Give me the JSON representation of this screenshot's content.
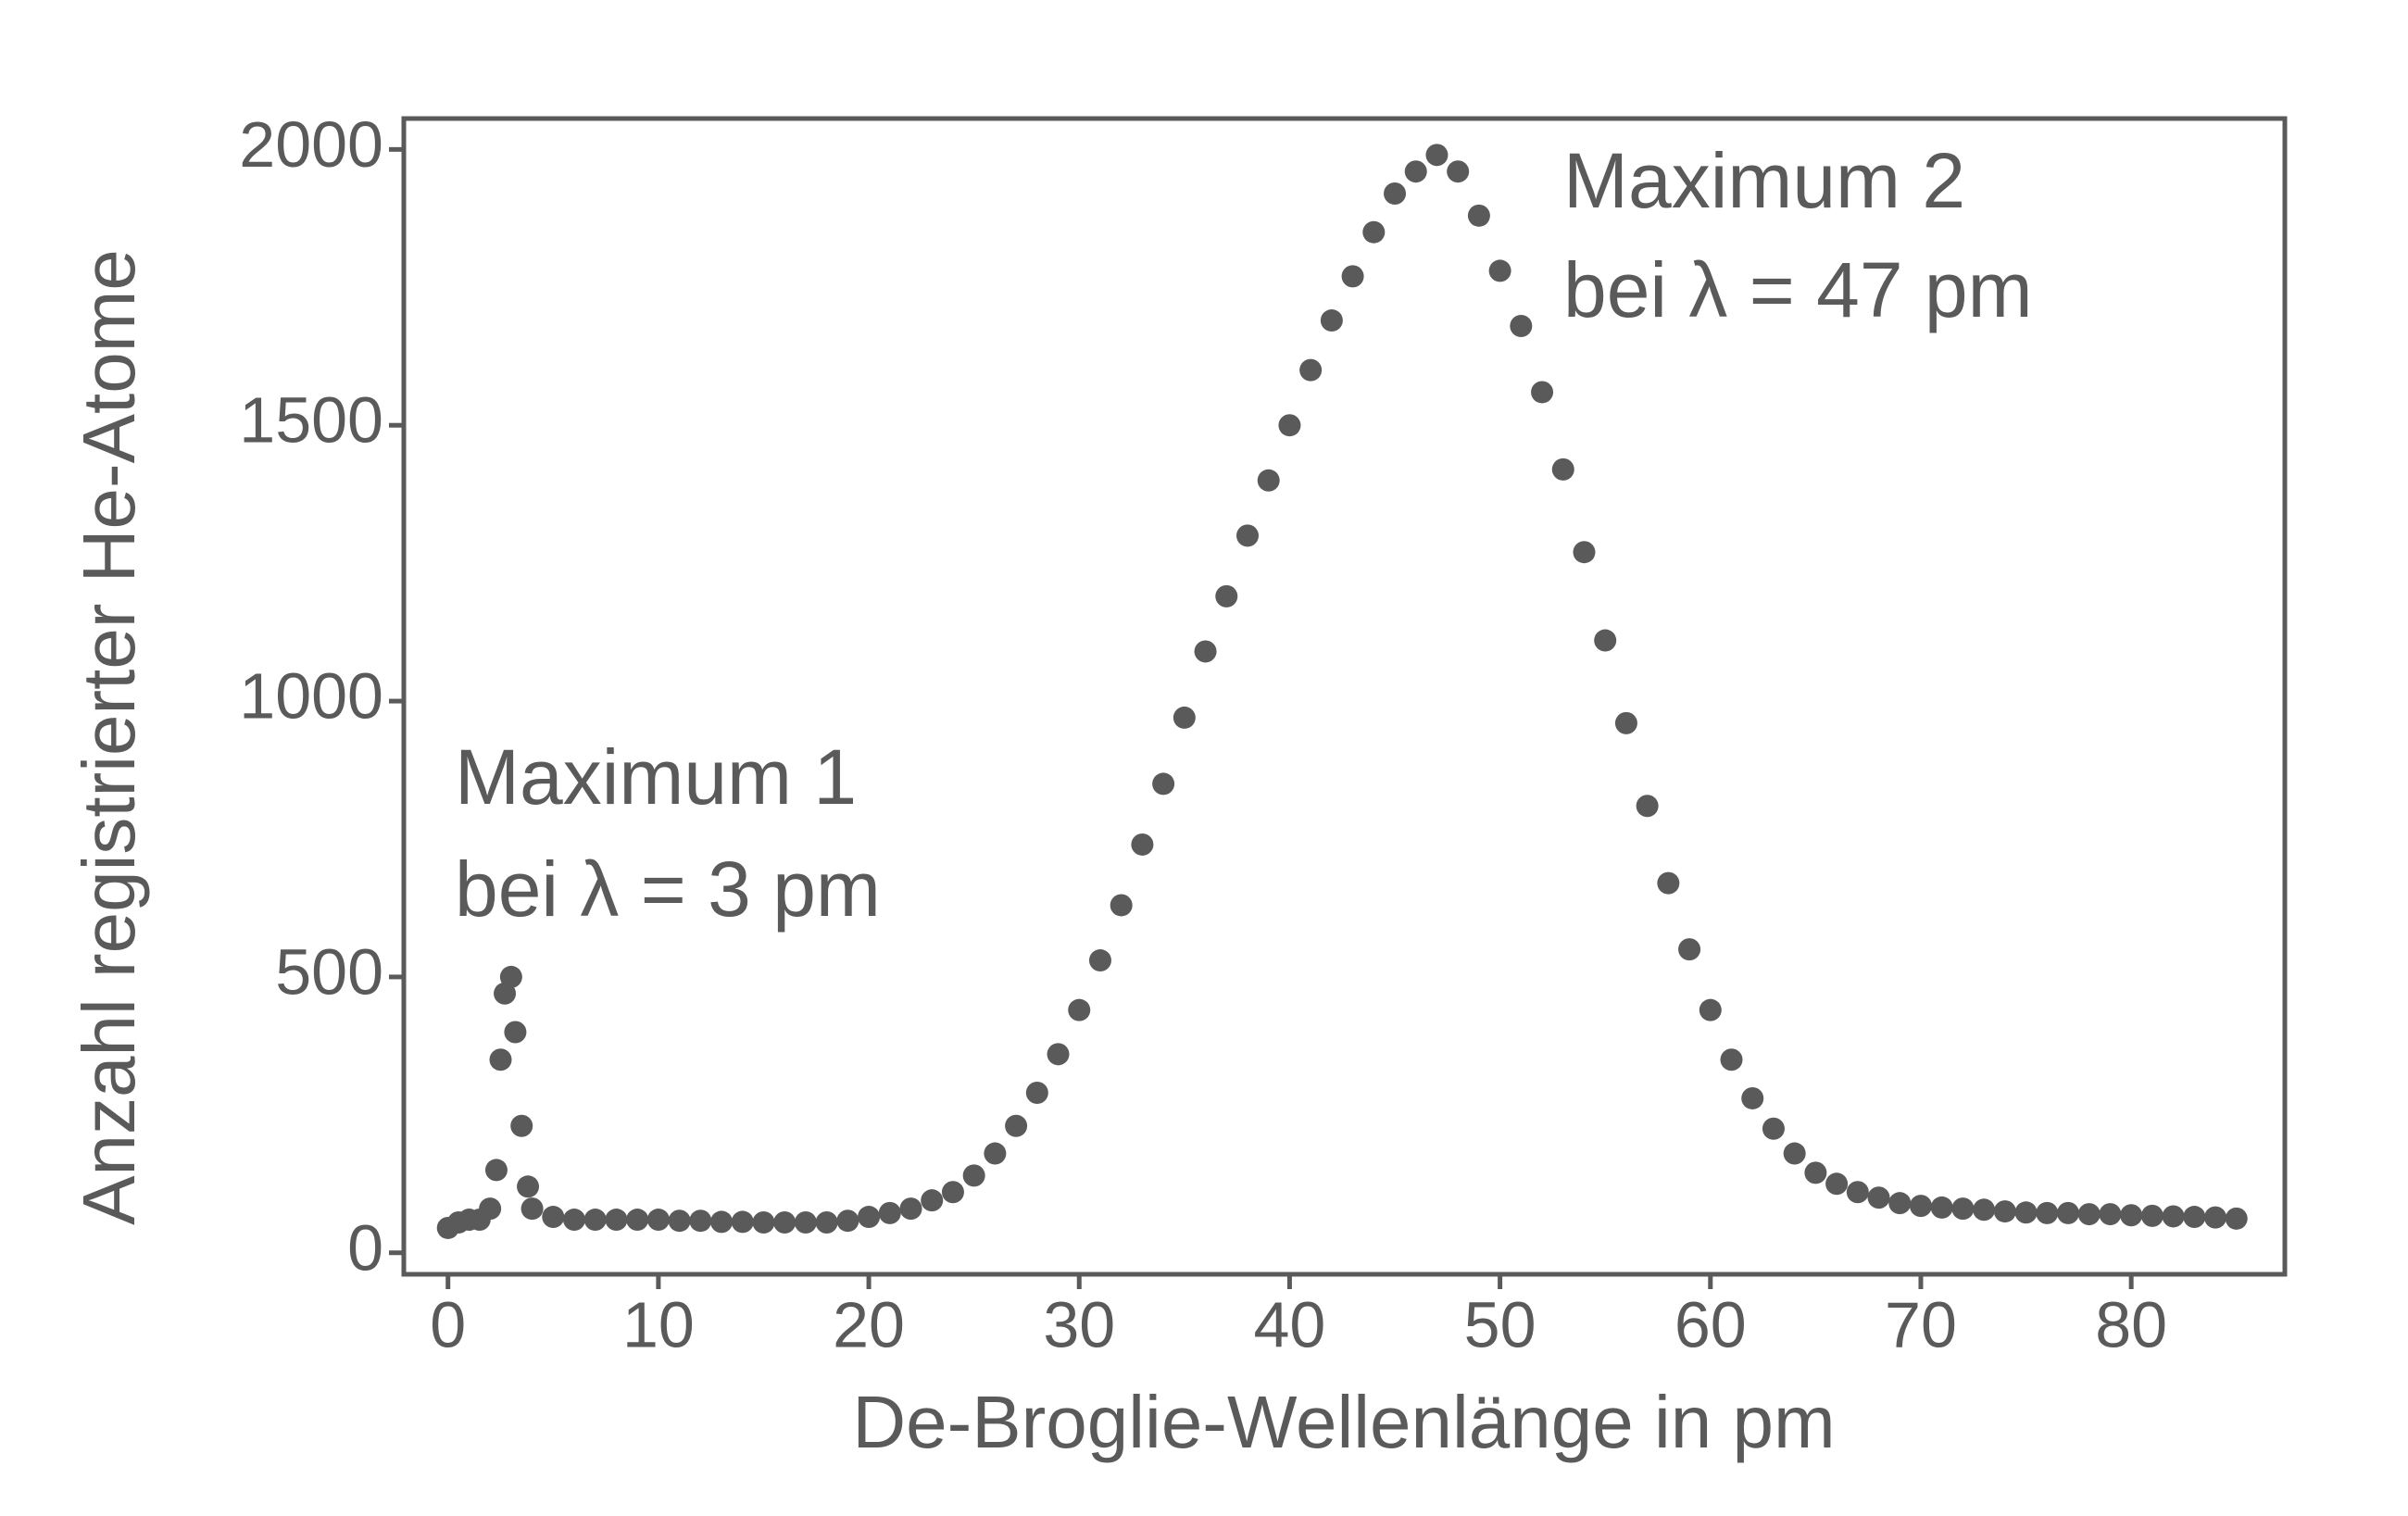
{
  "chart_data": {
    "type": "scatter",
    "xlabel": "De-Broglie-Wellenlänge in pm",
    "ylabel": "Anzahl registrierter He-Atome",
    "annotations": [
      "Maximum 1",
      "bei λ = 3 pm",
      "Maximum 2",
      "bei λ = 47 pm"
    ],
    "color": "#5a5a5a",
    "x": [
      0,
      0.5,
      1,
      1.5,
      2,
      2.3,
      2.5,
      2.7,
      3,
      3.2,
      3.5,
      3.8,
      4,
      5,
      6,
      7,
      8,
      9,
      10,
      11,
      12,
      13,
      14,
      15,
      16,
      17,
      18,
      19,
      20,
      21,
      22,
      23,
      24,
      25,
      26,
      27,
      28,
      29,
      30,
      31,
      32,
      33,
      34,
      35,
      36,
      37,
      38,
      39,
      40,
      41,
      42,
      43,
      44,
      45,
      46,
      47,
      48,
      49,
      50,
      51,
      52,
      53,
      54,
      55,
      56,
      57,
      58,
      59,
      60,
      61,
      62,
      63,
      64,
      65,
      66,
      67,
      68,
      69,
      70,
      71,
      72,
      73,
      74,
      75,
      76,
      77,
      78,
      79,
      80,
      81,
      82,
      83,
      84,
      85
    ],
    "values": [
      45,
      55,
      60,
      60,
      80,
      150,
      350,
      470,
      500,
      400,
      230,
      120,
      80,
      65,
      60,
      60,
      60,
      60,
      60,
      58,
      58,
      56,
      56,
      55,
      55,
      55,
      55,
      58,
      65,
      72,
      80,
      95,
      110,
      140,
      180,
      230,
      290,
      360,
      440,
      530,
      630,
      740,
      850,
      970,
      1090,
      1190,
      1300,
      1400,
      1500,
      1600,
      1690,
      1770,
      1850,
      1920,
      1960,
      1990,
      1960,
      1880,
      1780,
      1680,
      1560,
      1420,
      1270,
      1110,
      960,
      810,
      670,
      550,
      440,
      350,
      280,
      225,
      180,
      145,
      125,
      110,
      100,
      90,
      85,
      82,
      80,
      78,
      75,
      73,
      72,
      72,
      70,
      70,
      68,
      67,
      66,
      65,
      64,
      62
    ],
    "xlim": [
      -2.1,
      87.3
    ],
    "ylim": [
      -39,
      2056
    ],
    "xticks": [
      0,
      10,
      20,
      30,
      40,
      50,
      60,
      70,
      80
    ],
    "yticks": [
      0,
      500,
      1000,
      1500,
      2000
    ]
  }
}
